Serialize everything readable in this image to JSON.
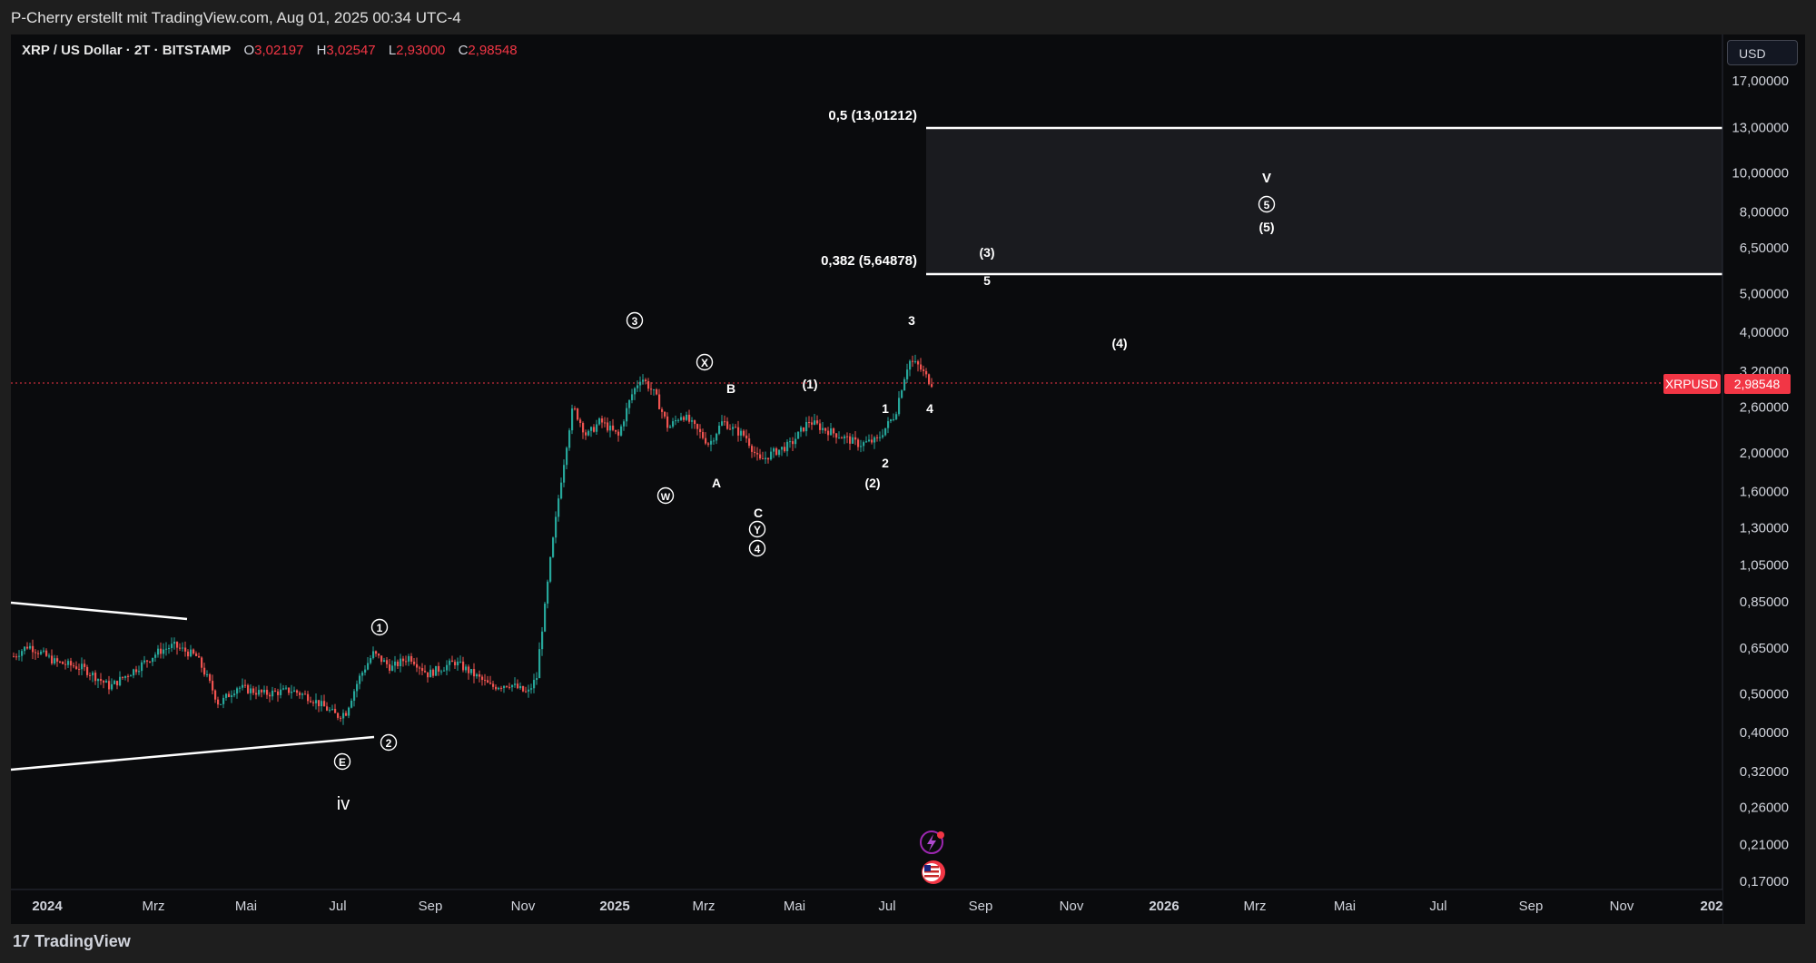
{
  "header": {
    "title": "P-Cherry erstellt mit TradingView.com, Aug 01, 2025 00:34 UTC-4"
  },
  "legend": {
    "symbol": "XRP / US Dollar · 2T · BITSTAMP",
    "open_label": "O",
    "open": "3,02197",
    "high_label": "H",
    "high": "3,02547",
    "low_label": "L",
    "low": "2,93000",
    "close_label": "C",
    "close": "2,98548"
  },
  "currency_button": "USD",
  "footer": {
    "brand": "TradingView",
    "logo": "17"
  },
  "price_axis": {
    "ticks": [
      "17,00000",
      "13,00000",
      "10,00000",
      "8,00000",
      "6,50000",
      "5,00000",
      "4,00000",
      "3,20000",
      "2,60000",
      "2,00000",
      "1,60000",
      "1,30000",
      "1,05000",
      "0,85000",
      "0,65000",
      "0,50000",
      "0,40000",
      "0,32000",
      "0,26000",
      "0,21000",
      "0,17000"
    ],
    "tick_values": [
      17,
      13,
      10,
      8,
      6.5,
      5,
      4,
      3.2,
      2.6,
      2,
      1.6,
      1.3,
      1.05,
      0.85,
      0.65,
      0.5,
      0.4,
      0.32,
      0.26,
      0.21,
      0.17
    ],
    "current_price_label": "2,98548",
    "current_price": 2.98548,
    "symbol_tag": "XRPUSD"
  },
  "time_axis": {
    "labels": [
      "2024",
      "Mrz",
      "Mai",
      "Jul",
      "Sep",
      "Nov",
      "2025",
      "Mrz",
      "Mai",
      "Jul",
      "Sep",
      "Nov",
      "2026",
      "Mrz",
      "Mai",
      "Jul",
      "Sep",
      "Nov",
      "202"
    ],
    "bold": [
      true,
      false,
      false,
      false,
      false,
      false,
      true,
      false,
      false,
      false,
      false,
      false,
      true,
      false,
      false,
      false,
      false,
      false,
      true
    ]
  },
  "fib_levels": [
    {
      "label": "0,5 (13,01212)",
      "price": 13.01212
    },
    {
      "label": "0,382 (5,64878)",
      "price": 5.64878
    }
  ],
  "wave_labels": [
    {
      "text": "iv",
      "circled": false
    },
    {
      "text": "E",
      "circled": true
    },
    {
      "text": "1",
      "circled": true
    },
    {
      "text": "2",
      "circled": true
    },
    {
      "text": "3",
      "circled": true
    },
    {
      "text": "W",
      "circled": true
    },
    {
      "text": "X",
      "circled": true
    },
    {
      "text": "A",
      "circled": false
    },
    {
      "text": "B",
      "circled": false
    },
    {
      "text": "C",
      "circled": false
    },
    {
      "text": "Y",
      "circled": true
    },
    {
      "text": "4",
      "circled": true
    },
    {
      "text": "(1)",
      "circled": false
    },
    {
      "text": "(2)",
      "circled": false
    },
    {
      "text": "1",
      "circled": false
    },
    {
      "text": "2",
      "circled": false
    },
    {
      "text": "3",
      "circled": false
    },
    {
      "text": "4",
      "circled": false
    },
    {
      "text": "(3)",
      "circled": false
    },
    {
      "text": "5",
      "circled": false
    },
    {
      "text": "(4)",
      "circled": false
    },
    {
      "text": "V",
      "circled": false
    },
    {
      "text": "5",
      "circled": true
    },
    {
      "text": "(5)",
      "circled": false
    }
  ],
  "colors": {
    "up": "#26a69a",
    "down": "#ef5350",
    "background": "#0a0b0d",
    "price_tag": "#f23645",
    "fib_zone": "#1a1b1f"
  }
}
